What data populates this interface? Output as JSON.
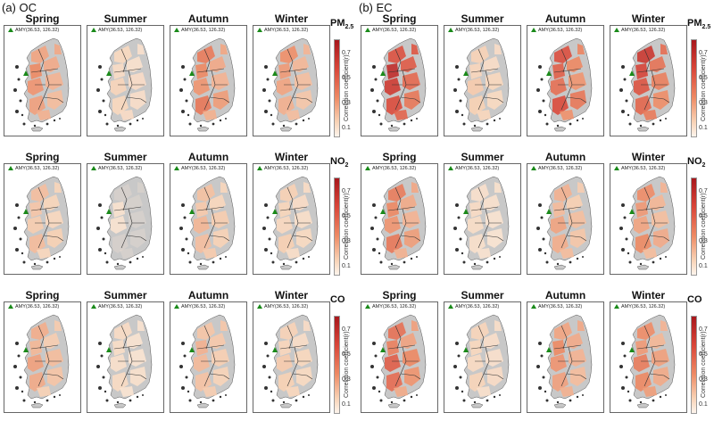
{
  "sections": [
    {
      "title": "(a) OC",
      "cmax": 0.8
    },
    {
      "title": "(b) EC",
      "cmax": 1.0
    }
  ],
  "seasons": [
    "Spring",
    "Summer",
    "Autumn",
    "Winter"
  ],
  "pollutants": [
    {
      "name": "PM",
      "sub": "2.5"
    },
    {
      "name": "NO",
      "sub": "2"
    },
    {
      "name": "CO",
      "sub": ""
    }
  ],
  "station_label": "AMY(36.53, 126.32)",
  "colorbar": {
    "ticks": [
      "0.7",
      "0.5",
      "0.3",
      "0.1"
    ],
    "label": "Correlation coefficient(r)"
  },
  "intensity": [
    [
      0.55,
      0.25,
      0.62,
      0.5
    ],
    [
      0.35,
      0.15,
      0.38,
      0.28
    ],
    [
      0.45,
      0.2,
      0.4,
      0.3
    ],
    [
      0.95,
      0.3,
      0.8,
      0.85
    ],
    [
      0.6,
      0.2,
      0.45,
      0.55
    ],
    [
      0.7,
      0.25,
      0.55,
      0.6
    ]
  ],
  "colors": {
    "land": "#c8c8c8",
    "station": "#1a8a1a",
    "high": "#a8171c",
    "low": "#fdf4ec"
  }
}
